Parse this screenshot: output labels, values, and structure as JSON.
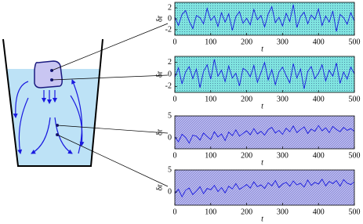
{
  "chart_data": [
    {
      "type": "line",
      "xlabel": "t",
      "ylabel": "δr",
      "background": "#80e4e0",
      "xlim": [
        0,
        500
      ],
      "xticks": [
        0,
        100,
        200,
        300,
        400,
        500
      ],
      "ylim": [
        -3,
        3
      ],
      "yticks": [
        -2,
        0,
        2
      ],
      "x": [
        0,
        10,
        20,
        30,
        40,
        50,
        60,
        70,
        80,
        90,
        100,
        110,
        120,
        130,
        140,
        150,
        160,
        170,
        180,
        190,
        200,
        210,
        220,
        230,
        240,
        250,
        260,
        270,
        280,
        290,
        300,
        310,
        320,
        330,
        340,
        350,
        360,
        370,
        380,
        390,
        400,
        410,
        420,
        430,
        440,
        450,
        460,
        470,
        480,
        490,
        500
      ],
      "series": [
        {
          "color": "#1a1ae0",
          "values": [
            0.3,
            -1.2,
            0.8,
            1.5,
            -0.4,
            -1.8,
            0.6,
            0.2,
            -0.9,
            1.9,
            -0.3,
            0.5,
            -1.4,
            1.1,
            -0.6,
            0.9,
            -2.1,
            0.4,
            1.3,
            -0.8,
            0.1,
            -1.1,
            1.7,
            -0.2,
            0.6,
            -1.5,
            0.9,
            2.2,
            -0.7,
            0.3,
            -1.3,
            1.0,
            -0.5,
            2.6,
            -1.6,
            0.4,
            1.2,
            -0.9,
            0.7,
            -0.1,
            1.8,
            -1.2,
            0.5,
            -0.6,
            1.4,
            -2.3,
            0.8,
            0.2,
            -1.0,
            1.1,
            -0.4
          ]
        }
      ]
    },
    {
      "type": "line",
      "xlabel": "t",
      "ylabel": "δr",
      "background": "#80e4e0",
      "xlim": [
        0,
        500
      ],
      "xticks": [
        0,
        100,
        200,
        300,
        400,
        500
      ],
      "ylim": [
        -3,
        3
      ],
      "yticks": [
        -2,
        0,
        2
      ],
      "x": [
        0,
        10,
        20,
        30,
        40,
        50,
        60,
        70,
        80,
        90,
        100,
        110,
        120,
        130,
        140,
        150,
        160,
        170,
        180,
        190,
        200,
        210,
        220,
        230,
        240,
        250,
        260,
        270,
        280,
        290,
        300,
        310,
        320,
        330,
        340,
        350,
        360,
        370,
        380,
        390,
        400,
        410,
        420,
        430,
        440,
        450,
        460,
        470,
        480,
        490,
        500
      ],
      "series": [
        {
          "color": "#1a1ae0",
          "values": [
            -0.5,
            1.1,
            -1.6,
            0.4,
            1.3,
            -0.7,
            0.9,
            -2.2,
            0.5,
            1.6,
            -0.8,
            2.5,
            -0.3,
            0.7,
            -1.2,
            1.4,
            -0.6,
            0.2,
            -1.9,
            1.0,
            0.6,
            -0.4,
            1.5,
            -1.3,
            0.3,
            2.0,
            -0.9,
            0.8,
            -1.7,
            0.4,
            1.2,
            -0.2,
            -1.4,
            1.8,
            -0.6,
            0.9,
            -2.4,
            0.5,
            1.3,
            -0.7,
            0.2,
            1.6,
            -1.1,
            0.7,
            -0.3,
            1.9,
            -1.5,
            0.4,
            -0.8,
            1.2,
            0.1
          ]
        }
      ]
    },
    {
      "type": "line",
      "xlabel": "t",
      "ylabel": "δr",
      "background": "#b8b8f0",
      "xlim": [
        0,
        500
      ],
      "xticks": [
        0,
        100,
        200,
        300,
        400,
        500
      ],
      "ylim": [
        -2.5,
        5
      ],
      "yticks": [
        0,
        5
      ],
      "x": [
        0,
        10,
        20,
        30,
        40,
        50,
        60,
        70,
        80,
        90,
        100,
        110,
        120,
        130,
        140,
        150,
        160,
        170,
        180,
        190,
        200,
        210,
        220,
        230,
        240,
        250,
        260,
        270,
        280,
        290,
        300,
        310,
        320,
        330,
        340,
        350,
        360,
        370,
        380,
        390,
        400,
        410,
        420,
        430,
        440,
        450,
        460,
        470,
        480,
        490,
        500
      ],
      "series": [
        {
          "color": "#1a1ae0",
          "values": [
            0.2,
            -0.9,
            0.8,
            0.1,
            -1.2,
            0.6,
            0.4,
            -0.5,
            1.1,
            0.3,
            -0.4,
            1.4,
            0.2,
            0.9,
            -0.6,
            1.3,
            0.5,
            1.8,
            0.4,
            1.0,
            1.6,
            0.7,
            2.1,
            0.9,
            1.5,
            0.6,
            1.9,
            2.4,
            1.1,
            1.7,
            0.8,
            2.2,
            1.4,
            2.7,
            1.2,
            1.9,
            2.5,
            1.0,
            2.0,
            1.5,
            2.8,
            1.6,
            2.3,
            1.2,
            2.6,
            1.9,
            1.4,
            2.4,
            1.7,
            2.1,
            1.5
          ]
        }
      ]
    },
    {
      "type": "line",
      "xlabel": "t",
      "ylabel": "δr",
      "background": "#b8b8f0",
      "xlim": [
        0,
        500
      ],
      "xticks": [
        0,
        100,
        200,
        300,
        400,
        500
      ],
      "ylim": [
        -3,
        5
      ],
      "yticks": [
        0,
        5
      ],
      "x": [
        0,
        10,
        20,
        30,
        40,
        50,
        60,
        70,
        80,
        90,
        100,
        110,
        120,
        130,
        140,
        150,
        160,
        170,
        180,
        190,
        200,
        210,
        220,
        230,
        240,
        250,
        260,
        270,
        280,
        290,
        300,
        310,
        320,
        330,
        340,
        350,
        360,
        370,
        380,
        390,
        400,
        410,
        420,
        430,
        440,
        450,
        460,
        470,
        480,
        490,
        500
      ],
      "series": [
        {
          "color": "#1a1ae0",
          "values": [
            -0.3,
            0.6,
            -1.1,
            0.4,
            0.9,
            -0.6,
            0.2,
            1.2,
            -0.4,
            0.8,
            0.5,
            1.5,
            0.1,
            1.0,
            -0.2,
            1.3,
            0.7,
            1.9,
            0.6,
            1.1,
            1.7,
            0.9,
            2.3,
            1.2,
            1.6,
            0.8,
            2.1,
            1.4,
            2.6,
            1.0,
            1.8,
            2.2,
            1.3,
            2.5,
            1.6,
            2.0,
            1.1,
            2.7,
            1.5,
            2.2,
            1.8,
            2.9,
            1.4,
            2.4,
            1.9,
            2.6,
            1.3,
            2.8,
            2.0,
            1.7,
            2.3
          ]
        }
      ]
    }
  ]
}
